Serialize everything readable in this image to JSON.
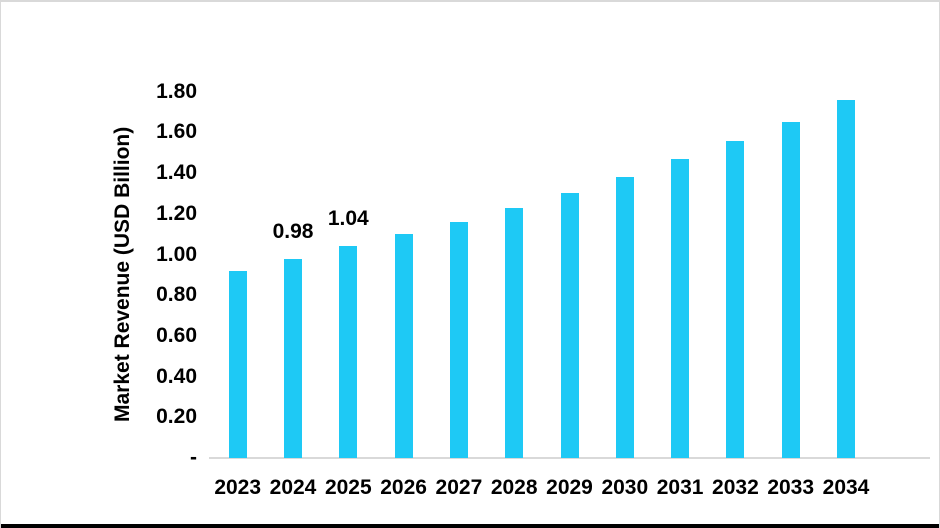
{
  "chart_data": {
    "type": "bar",
    "title": "",
    "xlabel": "",
    "ylabel": "Market Revenue (USD Billion)",
    "categories": [
      "2023",
      "2024",
      "2025",
      "2026",
      "2027",
      "2028",
      "2029",
      "2030",
      "2031",
      "2032",
      "2033",
      "2034"
    ],
    "values": [
      0.92,
      0.98,
      1.04,
      1.1,
      1.16,
      1.23,
      1.3,
      1.38,
      1.47,
      1.56,
      1.65,
      1.76
    ],
    "data_labels": [
      "",
      "0.98",
      "1.04",
      "",
      "",
      "",
      "",
      "",
      "",
      "",
      "",
      ""
    ],
    "ylim": [
      0,
      1.8
    ],
    "y_tick_step": 0.2,
    "y_ticks": [
      {
        "label": "-",
        "value": 0.0
      },
      {
        "label": "0.20",
        "value": 0.2
      },
      {
        "label": "0.40",
        "value": 0.4
      },
      {
        "label": "0.60",
        "value": 0.6
      },
      {
        "label": "0.80",
        "value": 0.8
      },
      {
        "label": "1.00",
        "value": 1.0
      },
      {
        "label": "1.20",
        "value": 1.2
      },
      {
        "label": "1.40",
        "value": 1.4
      },
      {
        "label": "1.60",
        "value": 1.6
      },
      {
        "label": "1.80",
        "value": 1.8
      }
    ],
    "grid": false,
    "legend": null,
    "bar_color": "#1ec9f5",
    "axis_line_color": "#d9d9d9",
    "text_color": "#000000"
  }
}
